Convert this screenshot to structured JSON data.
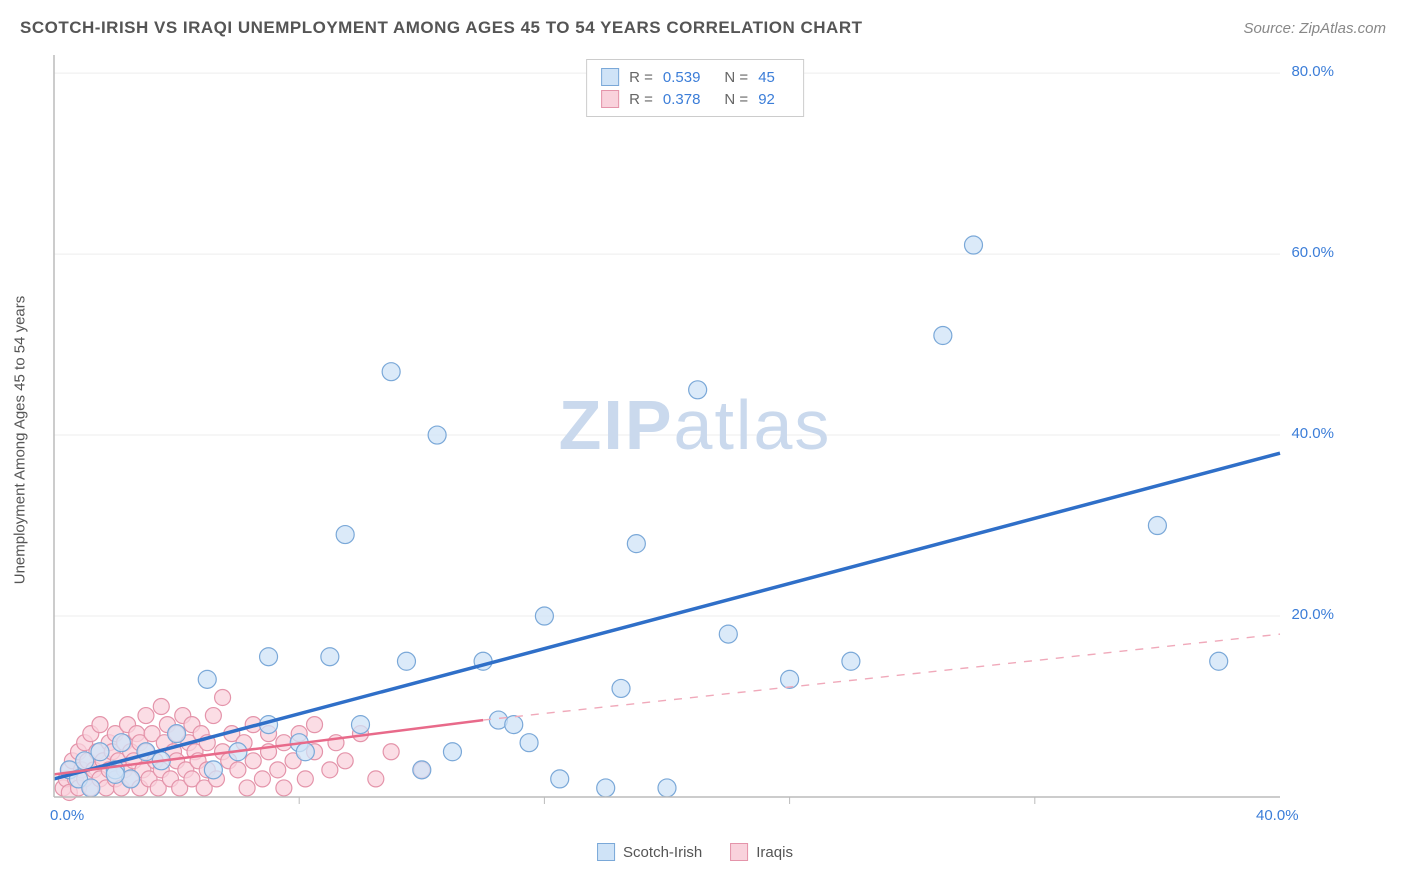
{
  "header": {
    "title": "SCOTCH-IRISH VS IRAQI UNEMPLOYMENT AMONG AGES 45 TO 54 YEARS CORRELATION CHART",
    "source": "Source: ZipAtlas.com"
  },
  "watermark": {
    "part1": "ZIP",
    "part2": "atlas"
  },
  "chart": {
    "type": "scatter",
    "ylabel": "Unemployment Among Ages 45 to 54 years",
    "xlim": [
      0,
      40
    ],
    "ylim": [
      0,
      82
    ],
    "xtick_major": [
      0,
      40
    ],
    "xtick_major_labels": [
      "0.0%",
      "40.0%"
    ],
    "xtick_minor": [
      8,
      16,
      24,
      32
    ],
    "ytick_major": [
      20,
      40,
      60,
      80
    ],
    "ytick_labels": [
      "20.0%",
      "40.0%",
      "60.0%",
      "80.0%"
    ],
    "grid_y": [
      20,
      40,
      60,
      80
    ],
    "background_color": "#ffffff",
    "grid_color": "#eeeeee",
    "axis_color": "#bbbbbb",
    "tick_label_color": "#3b7dd8",
    "axis_label_color": "#555555",
    "series": [
      {
        "name": "Scotch-Irish",
        "r": 0.539,
        "n": 45,
        "marker_fill": "#cfe3f7",
        "marker_stroke": "#7aa8d8",
        "marker_radius": 9,
        "line_color": "#2f6fc8",
        "line_width": 3.5,
        "line_dash": "none",
        "trend_from": [
          0,
          2
        ],
        "trend_to_solid": [
          40,
          38
        ],
        "trend_to_dashed": [
          40,
          38
        ],
        "points": [
          [
            0.5,
            3
          ],
          [
            0.8,
            2
          ],
          [
            1,
            4
          ],
          [
            1.2,
            1
          ],
          [
            1.5,
            5
          ],
          [
            2,
            3
          ],
          [
            2.2,
            6
          ],
          [
            2.5,
            2
          ],
          [
            3,
            5
          ],
          [
            3.5,
            4
          ],
          [
            4,
            7
          ],
          [
            5,
            13
          ],
          [
            5.2,
            3
          ],
          [
            6,
            5
          ],
          [
            7,
            8
          ],
          [
            7,
            15.5
          ],
          [
            8,
            6
          ],
          [
            8.2,
            5
          ],
          [
            9,
            15.5
          ],
          [
            9.5,
            29
          ],
          [
            10,
            8
          ],
          [
            11,
            47
          ],
          [
            11.5,
            15
          ],
          [
            12,
            3
          ],
          [
            12.5,
            40
          ],
          [
            13,
            5
          ],
          [
            14,
            15
          ],
          [
            14.5,
            8.5
          ],
          [
            15,
            8
          ],
          [
            15.5,
            6
          ],
          [
            16,
            20
          ],
          [
            16.5,
            2
          ],
          [
            18,
            1
          ],
          [
            18.5,
            12
          ],
          [
            19,
            28
          ],
          [
            20,
            1
          ],
          [
            21,
            45
          ],
          [
            22,
            18
          ],
          [
            24,
            13
          ],
          [
            26,
            15
          ],
          [
            29,
            51
          ],
          [
            30,
            61
          ],
          [
            36,
            30
          ],
          [
            38,
            15
          ],
          [
            2,
            2.5
          ]
        ]
      },
      {
        "name": "Iraqis",
        "r": 0.378,
        "n": 92,
        "marker_fill": "#f9d2dc",
        "marker_stroke": "#e494aa",
        "marker_radius": 8,
        "line_color": "#e86a8a",
        "line_width": 2.5,
        "line_dash": "none",
        "dashed_ext_color": "#f0a9ba",
        "trend_from": [
          0,
          2.5
        ],
        "trend_to_solid": [
          14,
          8.5
        ],
        "trend_to_dashed": [
          40,
          18
        ],
        "points": [
          [
            0.3,
            1
          ],
          [
            0.4,
            2
          ],
          [
            0.5,
            3
          ],
          [
            0.5,
            0.5
          ],
          [
            0.6,
            4
          ],
          [
            0.7,
            2
          ],
          [
            0.8,
            5
          ],
          [
            0.8,
            1
          ],
          [
            0.9,
            3
          ],
          [
            1,
            6
          ],
          [
            1,
            2
          ],
          [
            1.1,
            4
          ],
          [
            1.2,
            1
          ],
          [
            1.2,
            7
          ],
          [
            1.3,
            3
          ],
          [
            1.4,
            5
          ],
          [
            1.5,
            2
          ],
          [
            1.5,
            8
          ],
          [
            1.6,
            4
          ],
          [
            1.7,
            1
          ],
          [
            1.8,
            6
          ],
          [
            1.8,
            3
          ],
          [
            1.9,
            5
          ],
          [
            2,
            2
          ],
          [
            2,
            7
          ],
          [
            2.1,
            4
          ],
          [
            2.2,
            1
          ],
          [
            2.3,
            6
          ],
          [
            2.3,
            3
          ],
          [
            2.4,
            8
          ],
          [
            2.5,
            5
          ],
          [
            2.5,
            2
          ],
          [
            2.6,
            4
          ],
          [
            2.7,
            7
          ],
          [
            2.8,
            1
          ],
          [
            2.8,
            6
          ],
          [
            2.9,
            3
          ],
          [
            3,
            5
          ],
          [
            3,
            9
          ],
          [
            3.1,
            2
          ],
          [
            3.2,
            7
          ],
          [
            3.3,
            4
          ],
          [
            3.4,
            1
          ],
          [
            3.5,
            10
          ],
          [
            3.5,
            3
          ],
          [
            3.6,
            6
          ],
          [
            3.7,
            8
          ],
          [
            3.8,
            2
          ],
          [
            3.9,
            5
          ],
          [
            4,
            7
          ],
          [
            4,
            4
          ],
          [
            4.1,
            1
          ],
          [
            4.2,
            9
          ],
          [
            4.3,
            3
          ],
          [
            4.4,
            6
          ],
          [
            4.5,
            2
          ],
          [
            4.5,
            8
          ],
          [
            4.6,
            5
          ],
          [
            4.7,
            4
          ],
          [
            4.8,
            7
          ],
          [
            4.9,
            1
          ],
          [
            5,
            6
          ],
          [
            5,
            3
          ],
          [
            5.2,
            9
          ],
          [
            5.3,
            2
          ],
          [
            5.5,
            5
          ],
          [
            5.5,
            11
          ],
          [
            5.7,
            4
          ],
          [
            5.8,
            7
          ],
          [
            6,
            3
          ],
          [
            6.2,
            6
          ],
          [
            6.3,
            1
          ],
          [
            6.5,
            8
          ],
          [
            6.5,
            4
          ],
          [
            6.8,
            2
          ],
          [
            7,
            5
          ],
          [
            7,
            7
          ],
          [
            7.3,
            3
          ],
          [
            7.5,
            6
          ],
          [
            7.5,
            1
          ],
          [
            7.8,
            4
          ],
          [
            8,
            7
          ],
          [
            8.2,
            2
          ],
          [
            8.5,
            5
          ],
          [
            8.5,
            8
          ],
          [
            9,
            3
          ],
          [
            9.2,
            6
          ],
          [
            9.5,
            4
          ],
          [
            10,
            7
          ],
          [
            10.5,
            2
          ],
          [
            11,
            5
          ],
          [
            12,
            3
          ]
        ]
      }
    ],
    "legend_top": [
      {
        "swatch_fill": "#cfe3f7",
        "swatch_stroke": "#7aa8d8",
        "r_label": "R =",
        "r_val": "0.539",
        "n_label": "N =",
        "n_val": "45"
      },
      {
        "swatch_fill": "#f9d2dc",
        "swatch_stroke": "#e494aa",
        "r_label": "R =",
        "r_val": "0.378",
        "n_label": "N =",
        "n_val": "92"
      }
    ],
    "legend_bottom": [
      {
        "swatch_fill": "#cfe3f7",
        "swatch_stroke": "#7aa8d8",
        "label": "Scotch-Irish"
      },
      {
        "swatch_fill": "#f9d2dc",
        "swatch_stroke": "#e494aa",
        "label": "Iraqis"
      }
    ]
  }
}
